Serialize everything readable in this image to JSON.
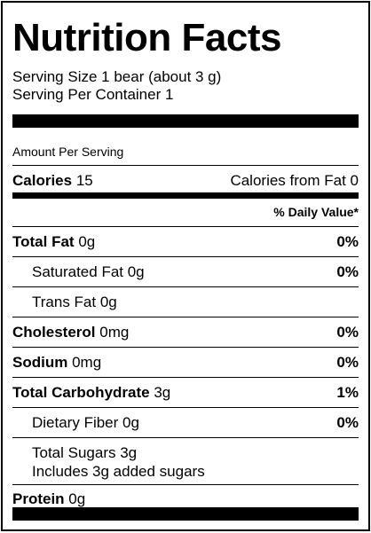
{
  "title": "Nutrition Facts",
  "serving_size": "Serving Size 1 bear (about 3 g)",
  "servings_per_container": "Serving Per Container 1",
  "amount_per_serving": "Amount Per Serving",
  "calories": {
    "label": "Calories",
    "value": "15",
    "from_fat": "Calories from Fat 0"
  },
  "daily_value_header": "% Daily Value*",
  "nutrients": {
    "total_fat": {
      "label": "Total Fat",
      "amount": "0g",
      "dv": "0%"
    },
    "saturated_fat": {
      "label": "Saturated Fat 0g",
      "dv": "0%"
    },
    "trans_fat": {
      "label": "Trans Fat 0g"
    },
    "cholesterol": {
      "label": "Cholesterol",
      "amount": "0mg",
      "dv": "0%"
    },
    "sodium": {
      "label": "Sodium",
      "amount": "0mg",
      "dv": "0%"
    },
    "total_carbohydrate": {
      "label": "Total Carbohydrate",
      "amount": "3g",
      "dv": "1%"
    },
    "dietary_fiber": {
      "label": "Dietary Fiber 0g",
      "dv": "0%"
    },
    "total_sugars": {
      "label": "Total Sugars 3g",
      "added": "Includes 3g added sugars"
    },
    "protein": {
      "label": "Protein",
      "amount": "0g"
    }
  }
}
